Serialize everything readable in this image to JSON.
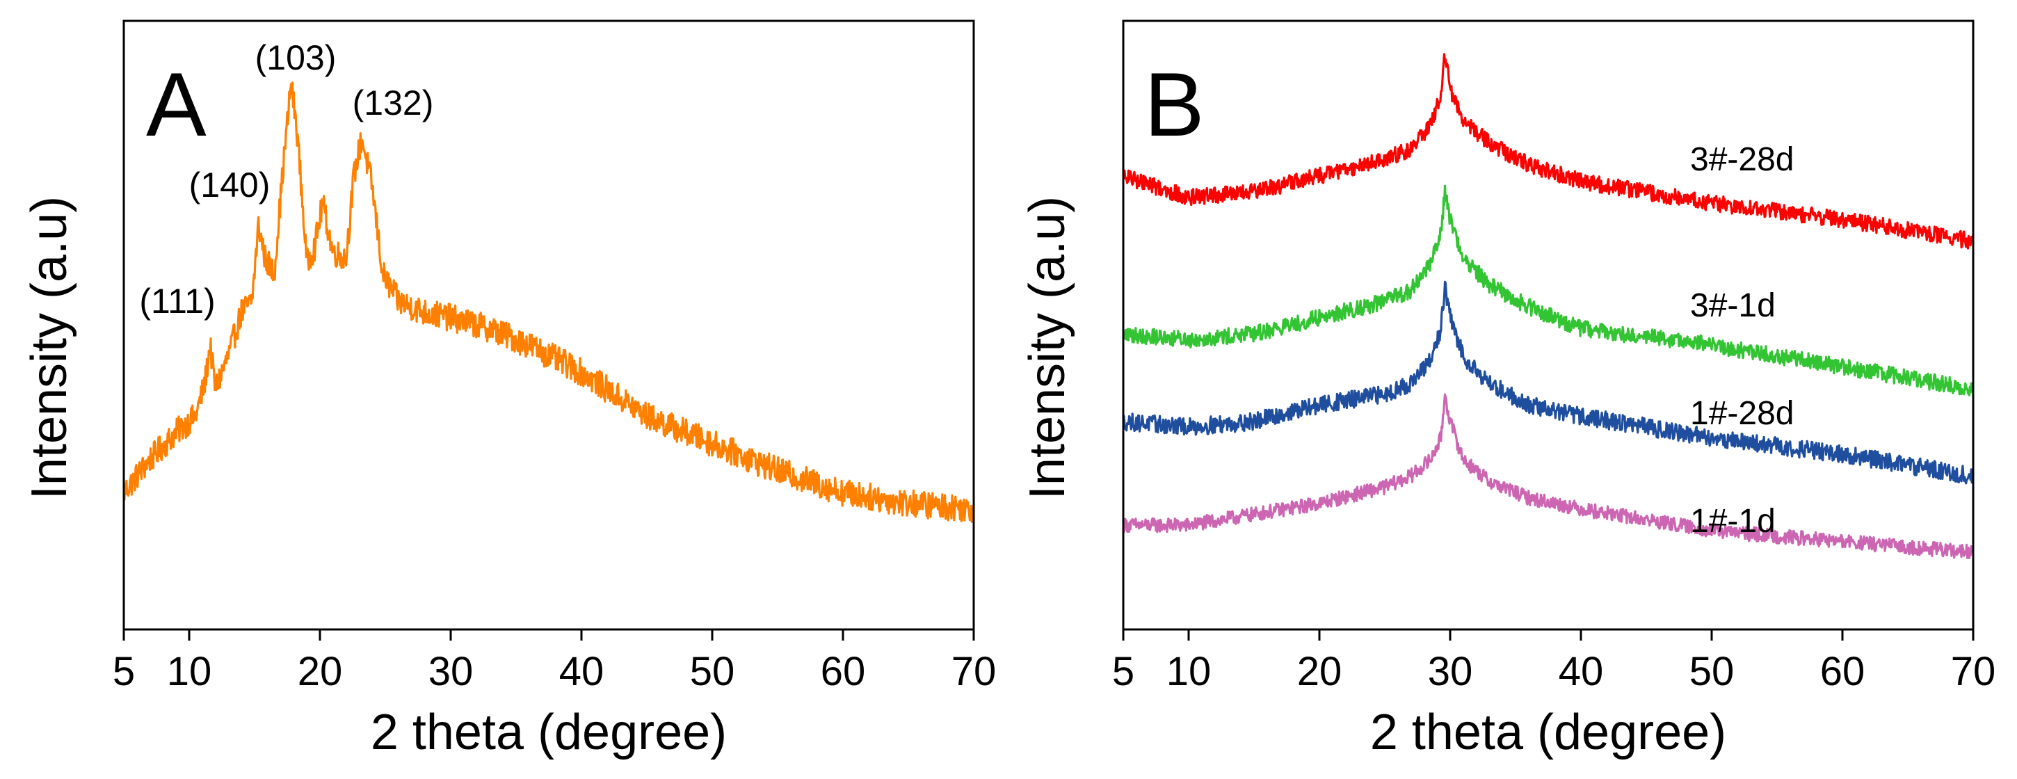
{
  "chart_data": [
    {
      "panel_label": "A",
      "type": "line",
      "xlabel": "2 theta (degree)",
      "ylabel": "Intensity (a.u)",
      "xlim": [
        5,
        70
      ],
      "ylim": [
        0,
        1
      ],
      "xticks": [
        5,
        10,
        20,
        30,
        40,
        50,
        60,
        70
      ],
      "yticks_shown": false,
      "grid": false,
      "series": [
        {
          "color": "#FF8000",
          "noise": 0.025,
          "points": [
            [
              5,
              0.2
            ],
            [
              7,
              0.26
            ],
            [
              9,
              0.31
            ],
            [
              10.5,
              0.34
            ],
            [
              11.2,
              0.4
            ],
            [
              11.6,
              0.47
            ],
            [
              12,
              0.39
            ],
            [
              13,
              0.45
            ],
            [
              14,
              0.53
            ],
            [
              14.8,
              0.55
            ],
            [
              15.3,
              0.69
            ],
            [
              15.8,
              0.63
            ],
            [
              16.5,
              0.6
            ],
            [
              17.2,
              0.8
            ],
            [
              17.8,
              0.95
            ],
            [
              18.3,
              0.85
            ],
            [
              19,
              0.62
            ],
            [
              19.6,
              0.65
            ],
            [
              20.2,
              0.73
            ],
            [
              21,
              0.64
            ],
            [
              22,
              0.63
            ],
            [
              22.6,
              0.78
            ],
            [
              23.2,
              0.85
            ],
            [
              24,
              0.76
            ],
            [
              24.8,
              0.6
            ],
            [
              26,
              0.55
            ],
            [
              28,
              0.53
            ],
            [
              30,
              0.52
            ],
            [
              33,
              0.5
            ],
            [
              36,
              0.47
            ],
            [
              40,
              0.42
            ],
            [
              45,
              0.34
            ],
            [
              50,
              0.29
            ],
            [
              55,
              0.24
            ],
            [
              60,
              0.2
            ],
            [
              65,
              0.18
            ],
            [
              70,
              0.17
            ]
          ]
        }
      ],
      "annotations": [
        {
          "text": "(111)",
          "x": 11.5
        },
        {
          "text": "(140)",
          "x": 15.3
        },
        {
          "text": "(103)",
          "x": 18
        },
        {
          "text": "(132)",
          "x": 23.2
        }
      ]
    },
    {
      "panel_label": "B",
      "type": "line",
      "xlabel": "2 theta (degree)",
      "ylabel": "Intensity (a.u)",
      "xlim": [
        5,
        70
      ],
      "ylim": [
        0,
        1
      ],
      "xticks": [
        5,
        10,
        20,
        30,
        40,
        50,
        60,
        70
      ],
      "yticks_shown": false,
      "grid": false,
      "series": [
        {
          "name": "1#-1d",
          "color": "#CC66B2",
          "noise": 0.013,
          "points": [
            [
              5,
              0.14
            ],
            [
              10,
              0.14
            ],
            [
              15,
              0.16
            ],
            [
              20,
              0.18
            ],
            [
              25,
              0.21
            ],
            [
              27,
              0.23
            ],
            [
              28.5,
              0.26
            ],
            [
              29.3,
              0.3
            ],
            [
              29.6,
              0.38
            ],
            [
              30,
              0.33
            ],
            [
              31,
              0.26
            ],
            [
              33,
              0.22
            ],
            [
              36,
              0.19
            ],
            [
              40,
              0.17
            ],
            [
              50,
              0.13
            ],
            [
              60,
              0.11
            ],
            [
              70,
              0.09
            ]
          ]
        },
        {
          "name": "1#-28d",
          "color": "#1F4E9E",
          "noise": 0.016,
          "points": [
            [
              5,
              0.33
            ],
            [
              10,
              0.32
            ],
            [
              15,
              0.33
            ],
            [
              20,
              0.36
            ],
            [
              25,
              0.38
            ],
            [
              27,
              0.4
            ],
            [
              28.5,
              0.44
            ],
            [
              29.3,
              0.5
            ],
            [
              29.6,
              0.58
            ],
            [
              30,
              0.52
            ],
            [
              31,
              0.45
            ],
            [
              33,
              0.4
            ],
            [
              36,
              0.36
            ],
            [
              40,
              0.34
            ],
            [
              50,
              0.3
            ],
            [
              60,
              0.27
            ],
            [
              70,
              0.23
            ]
          ]
        },
        {
          "name": "3#-1d",
          "color": "#33C433",
          "noise": 0.015,
          "points": [
            [
              5,
              0.49
            ],
            [
              10,
              0.48
            ],
            [
              15,
              0.49
            ],
            [
              20,
              0.52
            ],
            [
              25,
              0.55
            ],
            [
              27,
              0.57
            ],
            [
              28.5,
              0.62
            ],
            [
              29.3,
              0.68
            ],
            [
              29.6,
              0.75
            ],
            [
              30,
              0.7
            ],
            [
              31,
              0.63
            ],
            [
              33,
              0.58
            ],
            [
              36,
              0.54
            ],
            [
              40,
              0.5
            ],
            [
              50,
              0.47
            ],
            [
              60,
              0.43
            ],
            [
              70,
              0.39
            ]
          ]
        },
        {
          "name": "3#-28d",
          "color": "#FF0000",
          "noise": 0.015,
          "points": [
            [
              5,
              0.78
            ],
            [
              10,
              0.74
            ],
            [
              15,
              0.75
            ],
            [
              20,
              0.78
            ],
            [
              25,
              0.81
            ],
            [
              27,
              0.83
            ],
            [
              28.5,
              0.87
            ],
            [
              29.3,
              0.93
            ],
            [
              29.6,
              1.0
            ],
            [
              30,
              0.94
            ],
            [
              31,
              0.88
            ],
            [
              33,
              0.84
            ],
            [
              36,
              0.8
            ],
            [
              40,
              0.77
            ],
            [
              50,
              0.73
            ],
            [
              60,
              0.7
            ],
            [
              70,
              0.66
            ]
          ]
        }
      ]
    }
  ]
}
